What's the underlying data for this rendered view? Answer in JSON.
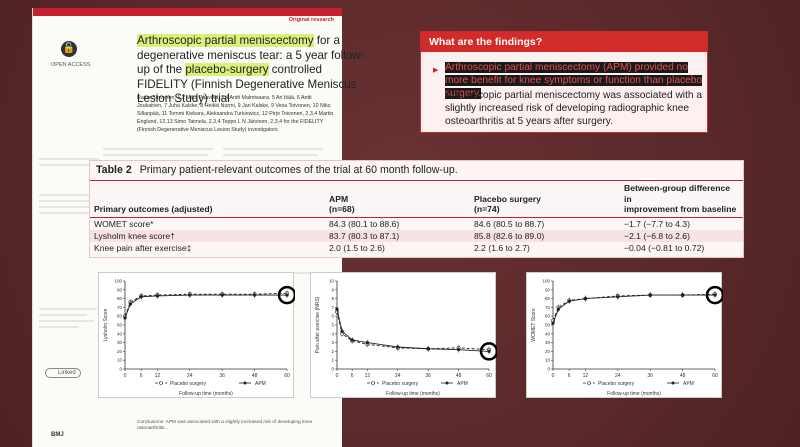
{
  "paper": {
    "kicker": "Original research",
    "oa_label": "OPEN ACCESS",
    "title_parts": [
      {
        "text": "Arthroscopic partial meniscectomy",
        "hl": true
      },
      {
        "text": " for a degenerative meniscus tear: a 5 year follow-up of the ",
        "hl": false
      },
      {
        "text": "placebo-surgery",
        "hl": true
      },
      {
        "text": " controlled FIDELITY (Finnish Degenerative Meniscus Lesion Study) trial",
        "hl": false
      }
    ],
    "authors": "Raine Sihvonen, 1,2 Mika Paavola, 3,4 Antti Malmivaara, 5 Ari Itälä, 6 Antti Joukainen, 7 Juha Kalske, 8 Heikki Nurmi, 9 Jari Kalske, 9 Vesa Toivonen, 10 Niko Sillanpää, 11 Tommi Kiekara, Aleksandra Turkiewicz, 12 Pirjo Toivonen, 2,3,4 Martin Englund, 12,13 Simo Taimela, 2,3,4 Teppo L N Järvinen, 2,3,4 for the FIDELITY (Finnish Degenerative Meniscus Lesion Study) investigators",
    "linked_label": "Linked",
    "publisher": "BMJ",
    "footer": "Conclusions: APM was associated with a slightly increased risk of developing knee osteoarthritis..."
  },
  "findings": {
    "heading": "What are the findings?",
    "bullet_text": "Arthroscopic partial meniscectomy (APM) provided no more benefit for knee symptoms or function than placebo surgery.",
    "para_text": "Arthroscopic partial meniscectomy was associated with a slightly increased risk of developing radiographic knee osteoarthritis at 5 years after surgery."
  },
  "table": {
    "label": "Table 2",
    "caption": "Primary patient-relevant outcomes of the trial at 60 month follow-up.",
    "headers": {
      "outcome": "Primary outcomes (adjusted)",
      "apm_a": "APM",
      "apm_b": "(n=68)",
      "placebo_a": "Placebo surgery",
      "placebo_b": "(n=74)",
      "diff_a": "Between-group difference in",
      "diff_b": "improvement from baseline"
    },
    "rows": [
      {
        "outcome": "WOMET score*",
        "apm": "84.3 (80.1 to 88.6)",
        "placebo": "84.6 (80.5 to 88.7)",
        "diff": "−1.7 (−7.7 to 4.3)"
      },
      {
        "outcome": "Lysholm knee score†",
        "apm": "83.7 (80.3 to 87.1)",
        "placebo": "85.8 (82.6 to 89.0)",
        "diff": "−2.1 (−6.8 to 2.6)"
      },
      {
        "outcome": "Knee pain after exercise‡",
        "apm": "2.0 (1.5 to 2.6)",
        "placebo": "2.2 (1.6 to 2.7)",
        "diff": "−0.04 (−0.81 to 0.72)"
      }
    ]
  },
  "chart_data": [
    {
      "type": "line",
      "ylabel": "Lysholm Score",
      "xlabel": "Follow-up time (months)",
      "xticks": [
        0,
        6,
        12,
        24,
        36,
        48,
        60
      ],
      "yticks": [
        0,
        10,
        20,
        30,
        40,
        50,
        60,
        70,
        80,
        90,
        100
      ],
      "ylim": [
        0,
        100
      ],
      "legend": [
        "Placebo surgery",
        "APM"
      ],
      "series": [
        {
          "name": "Placebo surgery",
          "x": [
            0,
            2,
            6,
            12,
            24,
            36,
            48,
            60
          ],
          "y": [
            60,
            76,
            83,
            84,
            85,
            85,
            85,
            86
          ]
        },
        {
          "name": "APM",
          "x": [
            0,
            2,
            6,
            12,
            24,
            36,
            48,
            60
          ],
          "y": [
            58,
            74,
            82,
            83,
            84,
            84,
            84,
            84
          ]
        }
      ]
    },
    {
      "type": "line",
      "ylabel": "Pain after exercise (NRS)",
      "xlabel": "Follow-up time (months)",
      "xticks": [
        0,
        6,
        12,
        24,
        36,
        48,
        60
      ],
      "yticks": [
        0,
        1,
        2,
        3,
        4,
        5,
        6,
        7,
        8,
        9,
        10
      ],
      "ylim": [
        0,
        10
      ],
      "legend": [
        "Placebo surgery",
        "APM"
      ],
      "series": [
        {
          "name": "Placebo surgery",
          "x": [
            0,
            2,
            6,
            12,
            24,
            36,
            48,
            60
          ],
          "y": [
            6.5,
            4.0,
            3.2,
            2.8,
            2.4,
            2.3,
            2.4,
            2.2
          ]
        },
        {
          "name": "APM",
          "x": [
            0,
            2,
            6,
            12,
            24,
            36,
            48,
            60
          ],
          "y": [
            6.8,
            4.3,
            3.3,
            3.0,
            2.5,
            2.3,
            2.2,
            2.0
          ]
        }
      ]
    },
    {
      "type": "line",
      "ylabel": "WOMET Score",
      "xlabel": "Follow-up time (months)",
      "xticks": [
        0,
        6,
        12,
        24,
        36,
        48,
        60
      ],
      "yticks": [
        0,
        10,
        20,
        30,
        40,
        50,
        60,
        70,
        80,
        90,
        100
      ],
      "ylim": [
        0,
        100
      ],
      "legend": [
        "Placebo surgery",
        "APM"
      ],
      "series": [
        {
          "name": "Placebo surgery",
          "x": [
            0,
            2,
            6,
            12,
            24,
            36,
            48,
            60
          ],
          "y": [
            55,
            70,
            78,
            80,
            83,
            84,
            84,
            85
          ]
        },
        {
          "name": "APM",
          "x": [
            0,
            2,
            6,
            12,
            24,
            36,
            48,
            60
          ],
          "y": [
            52,
            68,
            77,
            80,
            82,
            84,
            84,
            84
          ]
        }
      ]
    }
  ],
  "colors": {
    "accent": "#c8202e",
    "highlight": "#d9f07a",
    "background": "#5a2a2c"
  }
}
